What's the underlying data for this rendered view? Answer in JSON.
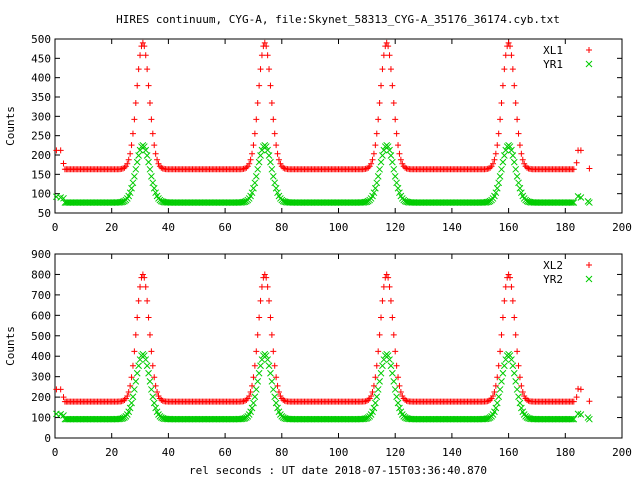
{
  "title": "HIRES continuum, CYG-A, file:Skynet_58313_CYG-A_35176_36174.cyb.txt",
  "xlabel": "rel seconds : UT date 2018-07-15T03:36:40.870",
  "chart_data": [
    {
      "type": "scatter",
      "xlim": [
        0,
        200
      ],
      "ylim": [
        50,
        500
      ],
      "xticks": [
        0,
        20,
        40,
        60,
        80,
        100,
        120,
        140,
        160,
        180,
        200
      ],
      "yticks": [
        50,
        100,
        150,
        200,
        250,
        300,
        350,
        400,
        450,
        500
      ],
      "ylabel": "Counts",
      "legend": "top-right",
      "series": [
        {
          "name": "XL1",
          "marker": "plus",
          "color": "#ff0000",
          "baseline": 163,
          "peak_centers": [
            31,
            74,
            117,
            160
          ],
          "peak_values": [
            490,
            490,
            490,
            490
          ],
          "sigma": 2.2,
          "start": [
            [
              0.5,
              212
            ],
            [
              2,
              212
            ],
            [
              3,
              178
            ]
          ],
          "end": [
            [
              184.5,
              212
            ],
            [
              185.5,
              212
            ],
            [
              184,
              180
            ]
          ]
        },
        {
          "name": "YR1",
          "marker": "x",
          "color": "#00cc00",
          "baseline": 77,
          "peak_centers": [
            31,
            74,
            117,
            160
          ],
          "peak_values": [
            225,
            225,
            225,
            225
          ],
          "sigma": 2.4,
          "start": [
            [
              0.5,
              92
            ],
            [
              2,
              90
            ],
            [
              3,
              88
            ]
          ],
          "end": [
            [
              184.5,
              93
            ],
            [
              185.5,
              90
            ],
            [
              188,
              80
            ]
          ]
        }
      ],
      "x_range": [
        3,
        189
      ]
    },
    {
      "type": "scatter",
      "xlim": [
        0,
        200
      ],
      "ylim": [
        0,
        900
      ],
      "xticks": [
        0,
        20,
        40,
        60,
        80,
        100,
        120,
        140,
        160,
        180,
        200
      ],
      "yticks": [
        0,
        100,
        200,
        300,
        400,
        500,
        600,
        700,
        800,
        900
      ],
      "ylabel": "Counts",
      "legend": "top-right",
      "series": [
        {
          "name": "XL2",
          "marker": "plus",
          "color": "#ff0000",
          "baseline": 178,
          "peak_centers": [
            31,
            74,
            117,
            160
          ],
          "peak_values": [
            800,
            800,
            800,
            800
          ],
          "sigma": 2.2,
          "start": [
            [
              0.5,
              238
            ],
            [
              2,
              238
            ],
            [
              3,
              200
            ]
          ],
          "end": [
            [
              184.5,
              240
            ],
            [
              185.5,
              238
            ],
            [
              184,
              200
            ]
          ]
        },
        {
          "name": "YR2",
          "marker": "x",
          "color": "#00cc00",
          "baseline": 92,
          "peak_centers": [
            31,
            74,
            117,
            160
          ],
          "peak_values": [
            410,
            410,
            410,
            410
          ],
          "sigma": 2.4,
          "start": [
            [
              0.5,
              118
            ],
            [
              2,
              116
            ],
            [
              3,
              110
            ]
          ],
          "end": [
            [
              184.5,
              118
            ],
            [
              185.5,
              115
            ],
            [
              188,
              100
            ]
          ]
        }
      ],
      "x_range": [
        3,
        189
      ]
    }
  ]
}
